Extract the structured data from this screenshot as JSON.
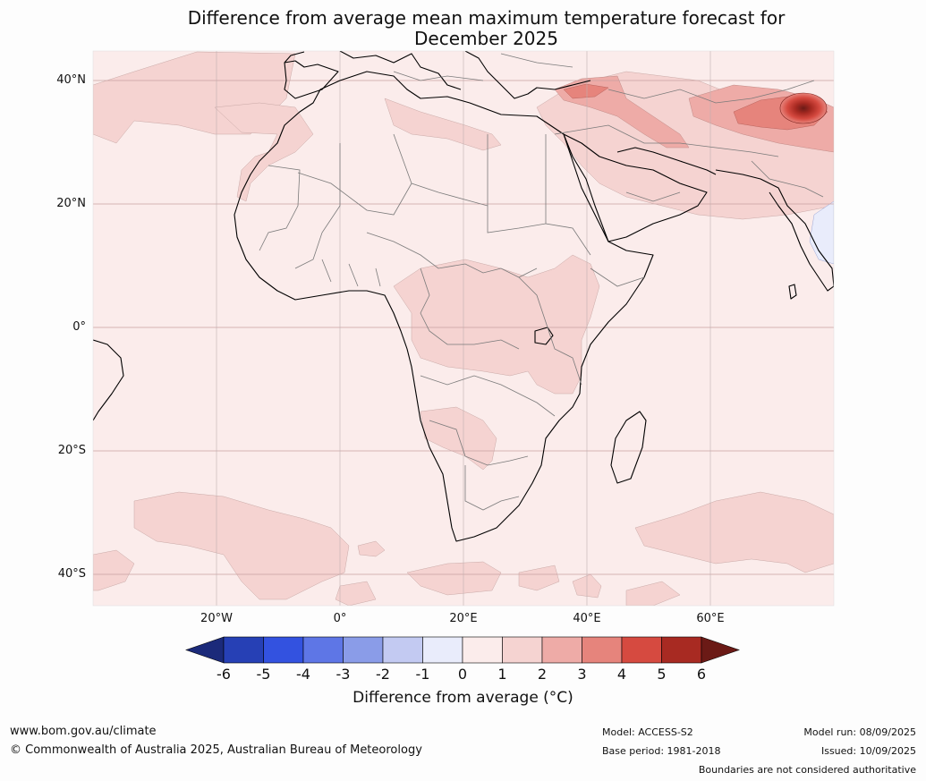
{
  "title": {
    "line1": "Difference from average mean maximum temperature forecast for",
    "line2": "December 2025"
  },
  "map": {
    "lat_labels": [
      "40°N",
      "20°N",
      "0°",
      "20°S",
      "40°S"
    ],
    "lon_labels": [
      "20°W",
      "0°",
      "20°E",
      "40°E",
      "60°E"
    ]
  },
  "colorbar": {
    "ticks": [
      "-6",
      "-5",
      "-4",
      "-3",
      "-2",
      "-1",
      "0",
      "1",
      "2",
      "3",
      "4",
      "5",
      "6"
    ],
    "label": "Difference from average ($^\\circ$C)",
    "label_display": "Difference from average (°C)",
    "colors": {
      "extend_low": "#1b2a7a",
      "bins": [
        "#2640b5",
        "#3352e0",
        "#5e76e6",
        "#8a9ce8",
        "#c3caf2",
        "#e9ecfb",
        "#fbeceb",
        "#f5d3d1",
        "#eeaba7",
        "#e6847c",
        "#d64a40",
        "#a82a22"
      ],
      "extend_high": "#6b1a16"
    }
  },
  "footer": {
    "url": "www.bom.gov.au/climate",
    "copyright": "© Commonwealth of Australia 2025, Australian Bureau of Meteorology",
    "model": "Model: ACCESS-S2",
    "base_period": "Base period: 1981-2018",
    "model_run": "Model run: 08/09/2025",
    "issued": "Issued: 10/09/2025",
    "disclaimer": "Boundaries are not considered authoritative"
  }
}
